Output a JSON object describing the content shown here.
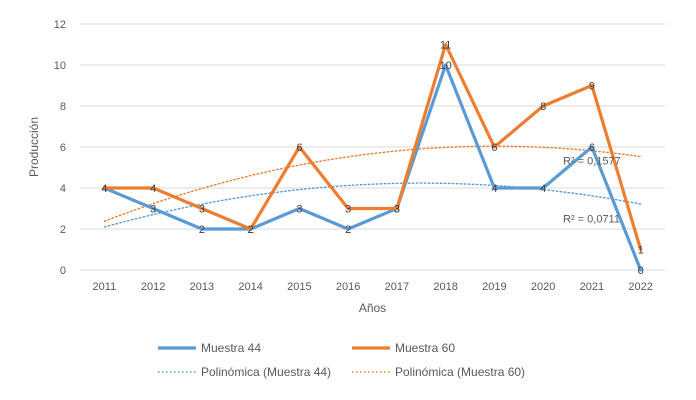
{
  "chart_data": {
    "type": "line",
    "title": "",
    "xlabel": "Años",
    "ylabel": "Producción",
    "ylim": [
      0,
      12
    ],
    "yticks": [
      0,
      2,
      4,
      6,
      8,
      10,
      12
    ],
    "grid": "horizontal",
    "legend_position": "bottom",
    "categories": [
      "2011",
      "2012",
      "2013",
      "2014",
      "2015",
      "2016",
      "2017",
      "2018",
      "2019",
      "2020",
      "2021",
      "2022"
    ],
    "series": [
      {
        "name": "Muestra 44",
        "color": "#5B9BD5",
        "values": [
          4,
          3,
          2,
          2,
          3,
          2,
          3,
          10,
          4,
          4,
          6,
          0
        ]
      },
      {
        "name": "Muestra 60",
        "color": "#ED7D31",
        "values": [
          4,
          4,
          3,
          2,
          6,
          3,
          3,
          11,
          6,
          8,
          9,
          1
        ]
      }
    ],
    "trendlines": [
      {
        "name": "Polinómica (Muestra 44)",
        "color": "#5B9BD5",
        "type": "polynomial",
        "r_squared": "R² = 0,0711"
      },
      {
        "name": "Polinómica (Muestra 60)",
        "color": "#ED7D31",
        "type": "polynomial",
        "r_squared": "R² = 0,1577"
      }
    ],
    "colors": {
      "grid": "#D9D9D9",
      "text": "#595959",
      "background": "#FFFFFF"
    }
  }
}
